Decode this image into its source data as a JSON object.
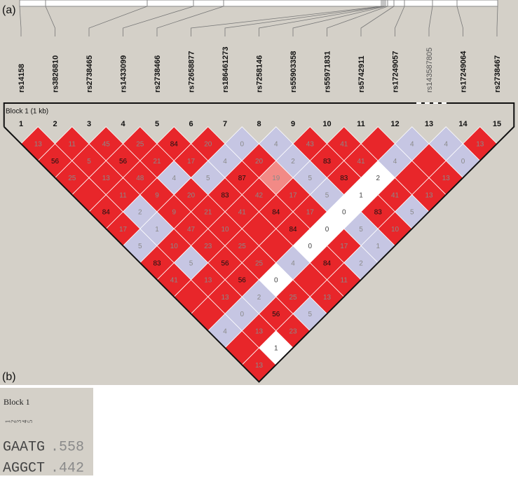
{
  "panel_a": {
    "label": "(a)",
    "block_label": "Block 1 (1 kb)",
    "snps": [
      {
        "name": "rs14158",
        "number": 1,
        "in_block": true
      },
      {
        "name": "rs3826810",
        "number": 2,
        "in_block": true
      },
      {
        "name": "rs2738465",
        "number": 3,
        "in_block": true
      },
      {
        "name": "rs1433099",
        "number": 4,
        "in_block": true
      },
      {
        "name": "rs2738466",
        "number": 5,
        "in_block": true
      },
      {
        "name": "rs72658877",
        "number": 6,
        "in_block": true
      },
      {
        "name": "rs186461273",
        "number": 7,
        "in_block": true
      },
      {
        "name": "rs7258146",
        "number": 8,
        "in_block": true
      },
      {
        "name": "rs55903358",
        "number": 9,
        "in_block": true
      },
      {
        "name": "rs55971831",
        "number": 10,
        "in_block": true
      },
      {
        "name": "rs5742911",
        "number": 11,
        "in_block": true
      },
      {
        "name": "rs17249057",
        "number": 12,
        "in_block": true
      },
      {
        "name": "rs143587805",
        "number": 13,
        "in_block": false
      },
      {
        "name": "rs17249064",
        "number": 14,
        "in_block": true
      },
      {
        "name": "rs2738467",
        "number": 15,
        "in_block": true
      }
    ],
    "palette": {
      "r": "#e8262a",
      "b": "#c6c6e3",
      "w": "#ffffff",
      "p": "#f28a86"
    },
    "ld_rows": [
      [
        {
          "shade": "r",
          "value": 13
        },
        {
          "shade": "r",
          "value": 11
        },
        {
          "shade": "r",
          "value": 45
        },
        {
          "shade": "r",
          "value": 25
        },
        {
          "shade": "r",
          "value": 84
        },
        {
          "shade": "r",
          "value": 20
        },
        {
          "shade": "b",
          "value": 0
        },
        {
          "shade": "b",
          "value": 4
        },
        {
          "shade": "r",
          "value": 43
        },
        {
          "shade": "r",
          "value": 41
        },
        {
          "shade": "r"
        },
        {
          "shade": "b",
          "value": 4
        },
        {
          "shade": "b",
          "value": 4
        },
        {
          "shade": "r",
          "value": 13
        }
      ],
      [
        {
          "shade": "r",
          "value": 56
        },
        {
          "shade": "r",
          "value": 5
        },
        {
          "shade": "r",
          "value": 56
        },
        {
          "shade": "r",
          "value": 21
        },
        {
          "shade": "r",
          "value": 17
        },
        {
          "shade": "b",
          "value": 4
        },
        {
          "shade": "r",
          "value": 20
        },
        {
          "shade": "b",
          "value": 2
        },
        {
          "shade": "r",
          "value": 83
        },
        {
          "shade": "r",
          "value": 41
        },
        {
          "shade": "b",
          "value": 4
        },
        {
          "shade": "r"
        },
        {
          "shade": "b",
          "value": 0
        }
      ],
      [
        {
          "shade": "r",
          "value": 25
        },
        {
          "shade": "r",
          "value": 13
        },
        {
          "shade": "r",
          "value": 48
        },
        {
          "shade": "b",
          "value": 4
        },
        {
          "shade": "b",
          "value": 5
        },
        {
          "shade": "r",
          "value": 87
        },
        {
          "shade": "p",
          "value": 19
        },
        {
          "shade": "b",
          "value": 5
        },
        {
          "shade": "r",
          "value": 83
        },
        {
          "shade": "w",
          "value": 2
        },
        {
          "shade": "r"
        },
        {
          "shade": "r",
          "value": 13
        }
      ],
      [
        {
          "shade": "r"
        },
        {
          "shade": "r",
          "value": 11
        },
        {
          "shade": "r",
          "value": 9
        },
        {
          "shade": "r",
          "value": 20
        },
        {
          "shade": "r",
          "value": 83
        },
        {
          "shade": "r",
          "value": 42
        },
        {
          "shade": "r",
          "value": 17
        },
        {
          "shade": "b",
          "value": 5
        },
        {
          "shade": "w",
          "value": 1
        },
        {
          "shade": "r",
          "value": 41
        },
        {
          "shade": "r",
          "value": 13
        }
      ],
      [
        {
          "shade": "r",
          "value": 84
        },
        {
          "shade": "b",
          "value": 2
        },
        {
          "shade": "r",
          "value": 9
        },
        {
          "shade": "r",
          "value": 21
        },
        {
          "shade": "r",
          "value": 41
        },
        {
          "shade": "r",
          "value": 84
        },
        {
          "shade": "r",
          "value": 17
        },
        {
          "shade": "w",
          "value": 0
        },
        {
          "shade": "r",
          "value": 83
        },
        {
          "shade": "b",
          "value": 5
        }
      ],
      [
        {
          "shade": "r",
          "value": 17
        },
        {
          "shade": "b",
          "value": 1
        },
        {
          "shade": "r",
          "value": 47
        },
        {
          "shade": "r",
          "value": 10
        },
        {
          "shade": "r"
        },
        {
          "shade": "r",
          "value": 84
        },
        {
          "shade": "w",
          "value": 0
        },
        {
          "shade": "b",
          "value": 5
        },
        {
          "shade": "r",
          "value": 10
        }
      ],
      [
        {
          "shade": "b",
          "value": 5
        },
        {
          "shade": "r",
          "value": 10
        },
        {
          "shade": "r",
          "value": 23
        },
        {
          "shade": "r",
          "value": 25
        },
        {
          "shade": "r"
        },
        {
          "shade": "w",
          "value": 0
        },
        {
          "shade": "r",
          "value": 17
        },
        {
          "shade": "b",
          "value": 1
        }
      ],
      [
        {
          "shade": "r",
          "value": 83
        },
        {
          "shade": "b",
          "value": 5
        },
        {
          "shade": "r",
          "value": 56
        },
        {
          "shade": "r",
          "value": 25
        },
        {
          "shade": "b",
          "value": 4
        },
        {
          "shade": "r",
          "value": 84
        },
        {
          "shade": "b",
          "value": 2
        }
      ],
      [
        {
          "shade": "r",
          "value": 41
        },
        {
          "shade": "r",
          "value": 13
        },
        {
          "shade": "r",
          "value": 56
        },
        {
          "shade": "w",
          "value": 0
        },
        {
          "shade": "r"
        },
        {
          "shade": "r",
          "value": 11
        }
      ],
      [
        {
          "shade": "r"
        },
        {
          "shade": "r",
          "value": 13
        },
        {
          "shade": "b",
          "value": 2
        },
        {
          "shade": "r",
          "value": 25
        },
        {
          "shade": "r",
          "value": 13
        }
      ],
      [
        {
          "shade": "r"
        },
        {
          "shade": "b",
          "value": 0
        },
        {
          "shade": "r",
          "value": 56
        },
        {
          "shade": "b",
          "value": 5
        }
      ],
      [
        {
          "shade": "b",
          "value": 4
        },
        {
          "shade": "r",
          "value": 13
        },
        {
          "shade": "r",
          "value": 23
        }
      ],
      [
        {
          "shade": "r"
        },
        {
          "shade": "w",
          "value": 1
        }
      ],
      [
        {
          "shade": "r",
          "value": 13
        }
      ]
    ]
  },
  "panel_b": {
    "label": "(b)",
    "block_title": "Block 1",
    "markers": [
      1,
      2,
      3,
      4,
      5
    ],
    "haplotypes": [
      {
        "sequence": "GAATG",
        "frequency": ".558"
      },
      {
        "sequence": "AGGCT",
        "frequency": ".442"
      }
    ]
  }
}
